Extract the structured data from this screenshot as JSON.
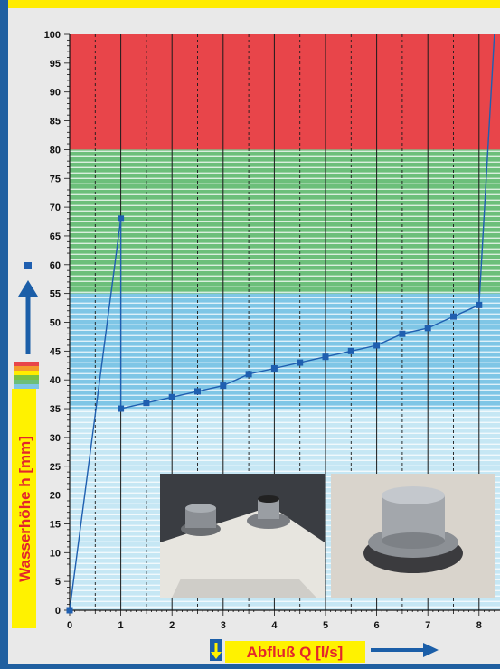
{
  "colors": {
    "frame": "#1f5fa0",
    "header_band": "#ffec00",
    "zone_red": "#e8454a",
    "zone_green": "#6cbf7a",
    "zone_blue": "#7fc6e6",
    "zone_lightblue": "#c6e7f4",
    "series": "#1f5fb0",
    "arrow": "#1b5ea8",
    "label_band": "#fff200",
    "label_text": "#e3262b"
  },
  "chart_data": {
    "type": "line",
    "xlabel": "Abfluß Q [l/s]",
    "ylabel": "Wasserhöhe h [mm]",
    "xlim": [
      0,
      8.3
    ],
    "ylim": [
      0,
      100
    ],
    "x_ticks": [
      0,
      1,
      2,
      3,
      4,
      5,
      6,
      7,
      8
    ],
    "y_ticks": [
      0,
      5,
      10,
      15,
      20,
      25,
      30,
      35,
      40,
      45,
      50,
      55,
      60,
      65,
      70,
      75,
      80,
      85,
      90,
      95,
      100
    ],
    "grid": true,
    "zones": [
      {
        "from": 80,
        "to": 100,
        "color": "red"
      },
      {
        "from": 55,
        "to": 80,
        "color": "green"
      },
      {
        "from": 35,
        "to": 55,
        "color": "blue"
      },
      {
        "from": 0,
        "to": 35,
        "color": "lightblue"
      }
    ],
    "series": [
      {
        "x": [
          0,
          1,
          1,
          1.5,
          2,
          2.5,
          3,
          3.5,
          4,
          4.5,
          5,
          5.5,
          6,
          6.5,
          7,
          7.5,
          8,
          8.3
        ],
        "y": [
          0,
          68,
          35,
          36,
          37,
          38,
          39,
          41,
          42,
          43,
          44,
          45,
          46,
          48,
          49,
          51,
          53,
          100
        ],
        "markers": [
          true,
          true,
          true,
          true,
          true,
          true,
          true,
          true,
          true,
          true,
          true,
          true,
          true,
          true,
          true,
          true,
          true,
          false
        ]
      }
    ]
  }
}
